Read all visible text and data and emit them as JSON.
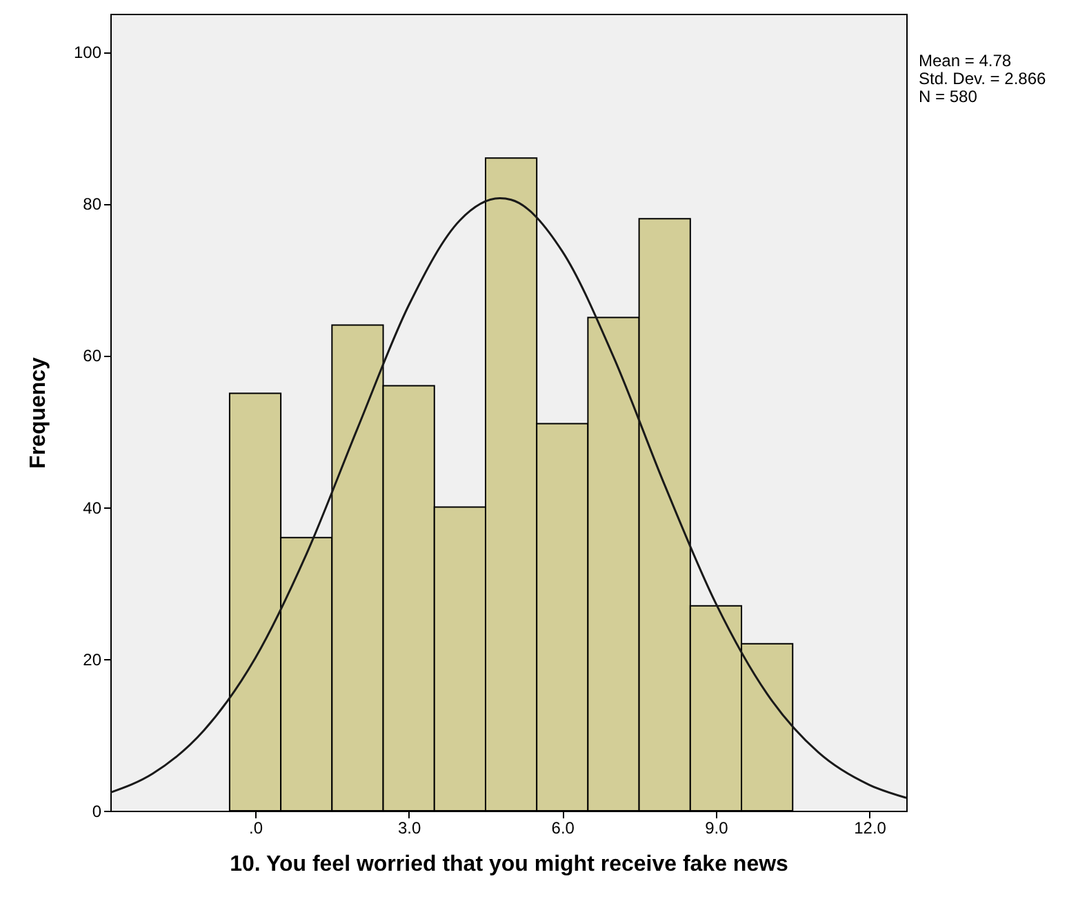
{
  "chart_data": {
    "type": "histogram",
    "xlabel": "10. You feel worried that you might receive fake news",
    "ylabel": "Frequency",
    "bins": [
      -0.5,
      0.5,
      1.5,
      2.5,
      3.5,
      4.5,
      5.5,
      6.5,
      7.5,
      8.5,
      9.5,
      10.5
    ],
    "values": [
      55,
      36,
      64,
      56,
      40,
      86,
      51,
      65,
      78,
      27,
      22
    ],
    "color": "#d3ce97",
    "series": [
      {
        "type": "line",
        "color": "#1a1a1a",
        "x": [
          -2.83,
          -2,
          -1,
          0,
          1,
          2,
          3,
          4,
          4.78,
          5,
          6,
          7,
          8,
          9,
          10,
          11,
          12,
          12.72
        ],
        "values": [
          2.4,
          4.9,
          10.6,
          20.1,
          33.8,
          50.4,
          66.6,
          77.8,
          80.7,
          80.5,
          73.7,
          59.8,
          42.9,
          27.3,
          15.4,
          7.7,
          3.4,
          1.7
        ]
      }
    ],
    "xlim": [
      -2.83,
      12.72
    ],
    "xticks": [
      {
        "value": 0,
        "label": ".0"
      },
      {
        "value": 3,
        "label": "3.0"
      },
      {
        "value": 6,
        "label": "6.0"
      },
      {
        "value": 9,
        "label": "9.0"
      },
      {
        "value": 12,
        "label": "12.0"
      }
    ],
    "ylim": [
      0,
      105
    ],
    "yticks": [
      0,
      20,
      40,
      60,
      80,
      100
    ],
    "annotations": [
      "Mean = 4.78",
      "Std. Dev. = 2.866",
      "N = 580"
    ]
  }
}
